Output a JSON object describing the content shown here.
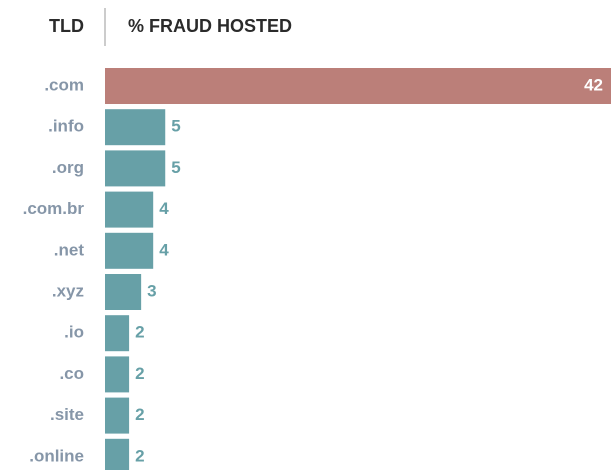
{
  "chart_data": {
    "type": "bar",
    "orientation": "horizontal",
    "category_header": "TLD",
    "value_header": "% FRAUD HOSTED",
    "categories": [
      ".com",
      ".info",
      ".org",
      ".com.br",
      ".net",
      ".xyz",
      ".io",
      ".co",
      ".site",
      ".online"
    ],
    "values": [
      42,
      5,
      5,
      4,
      4,
      3,
      2,
      2,
      2,
      2
    ],
    "colors": [
      "#bb7f79",
      "#67a0a7",
      "#67a0a7",
      "#67a0a7",
      "#67a0a7",
      "#67a0a7",
      "#67a0a7",
      "#67a0a7",
      "#67a0a7",
      "#67a0a7"
    ]
  }
}
